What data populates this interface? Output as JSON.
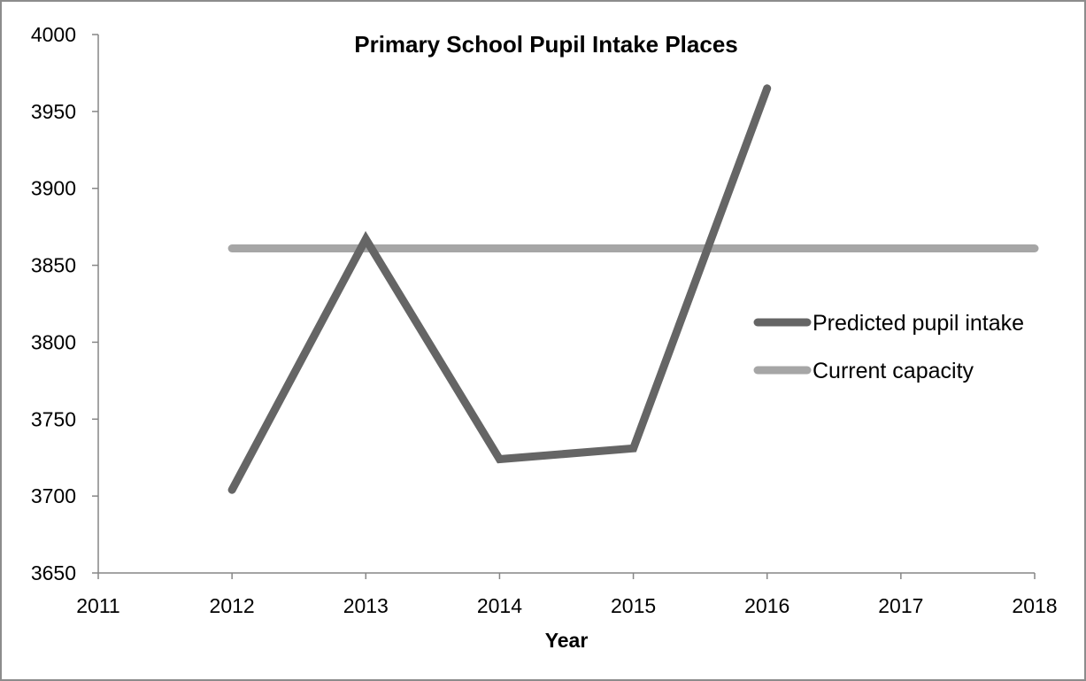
{
  "chart_data": {
    "type": "line",
    "title": "Primary School Pupil Intake Places",
    "xlabel": "Year",
    "ylabel": "",
    "xlim": [
      2011,
      2018
    ],
    "ylim": [
      3650,
      4000
    ],
    "x_ticks": [
      "2011",
      "2012",
      "2013",
      "2014",
      "2015",
      "2016",
      "2017",
      "2018"
    ],
    "y_ticks": [
      "3650",
      "3700",
      "3750",
      "3800",
      "3850",
      "3900",
      "3950",
      "4000"
    ],
    "grid": false,
    "legend_position": "right",
    "series": [
      {
        "name": "Predicted pupil intake",
        "color": "#656565",
        "x": [
          2012,
          2013,
          2014,
          2015,
          2016
        ],
        "y": [
          3704,
          3867,
          3724,
          3731,
          3965
        ]
      },
      {
        "name": "Current capacity",
        "color": "#a6a6a6",
        "x": [
          2012,
          2018
        ],
        "y": [
          3861,
          3861
        ]
      }
    ]
  }
}
